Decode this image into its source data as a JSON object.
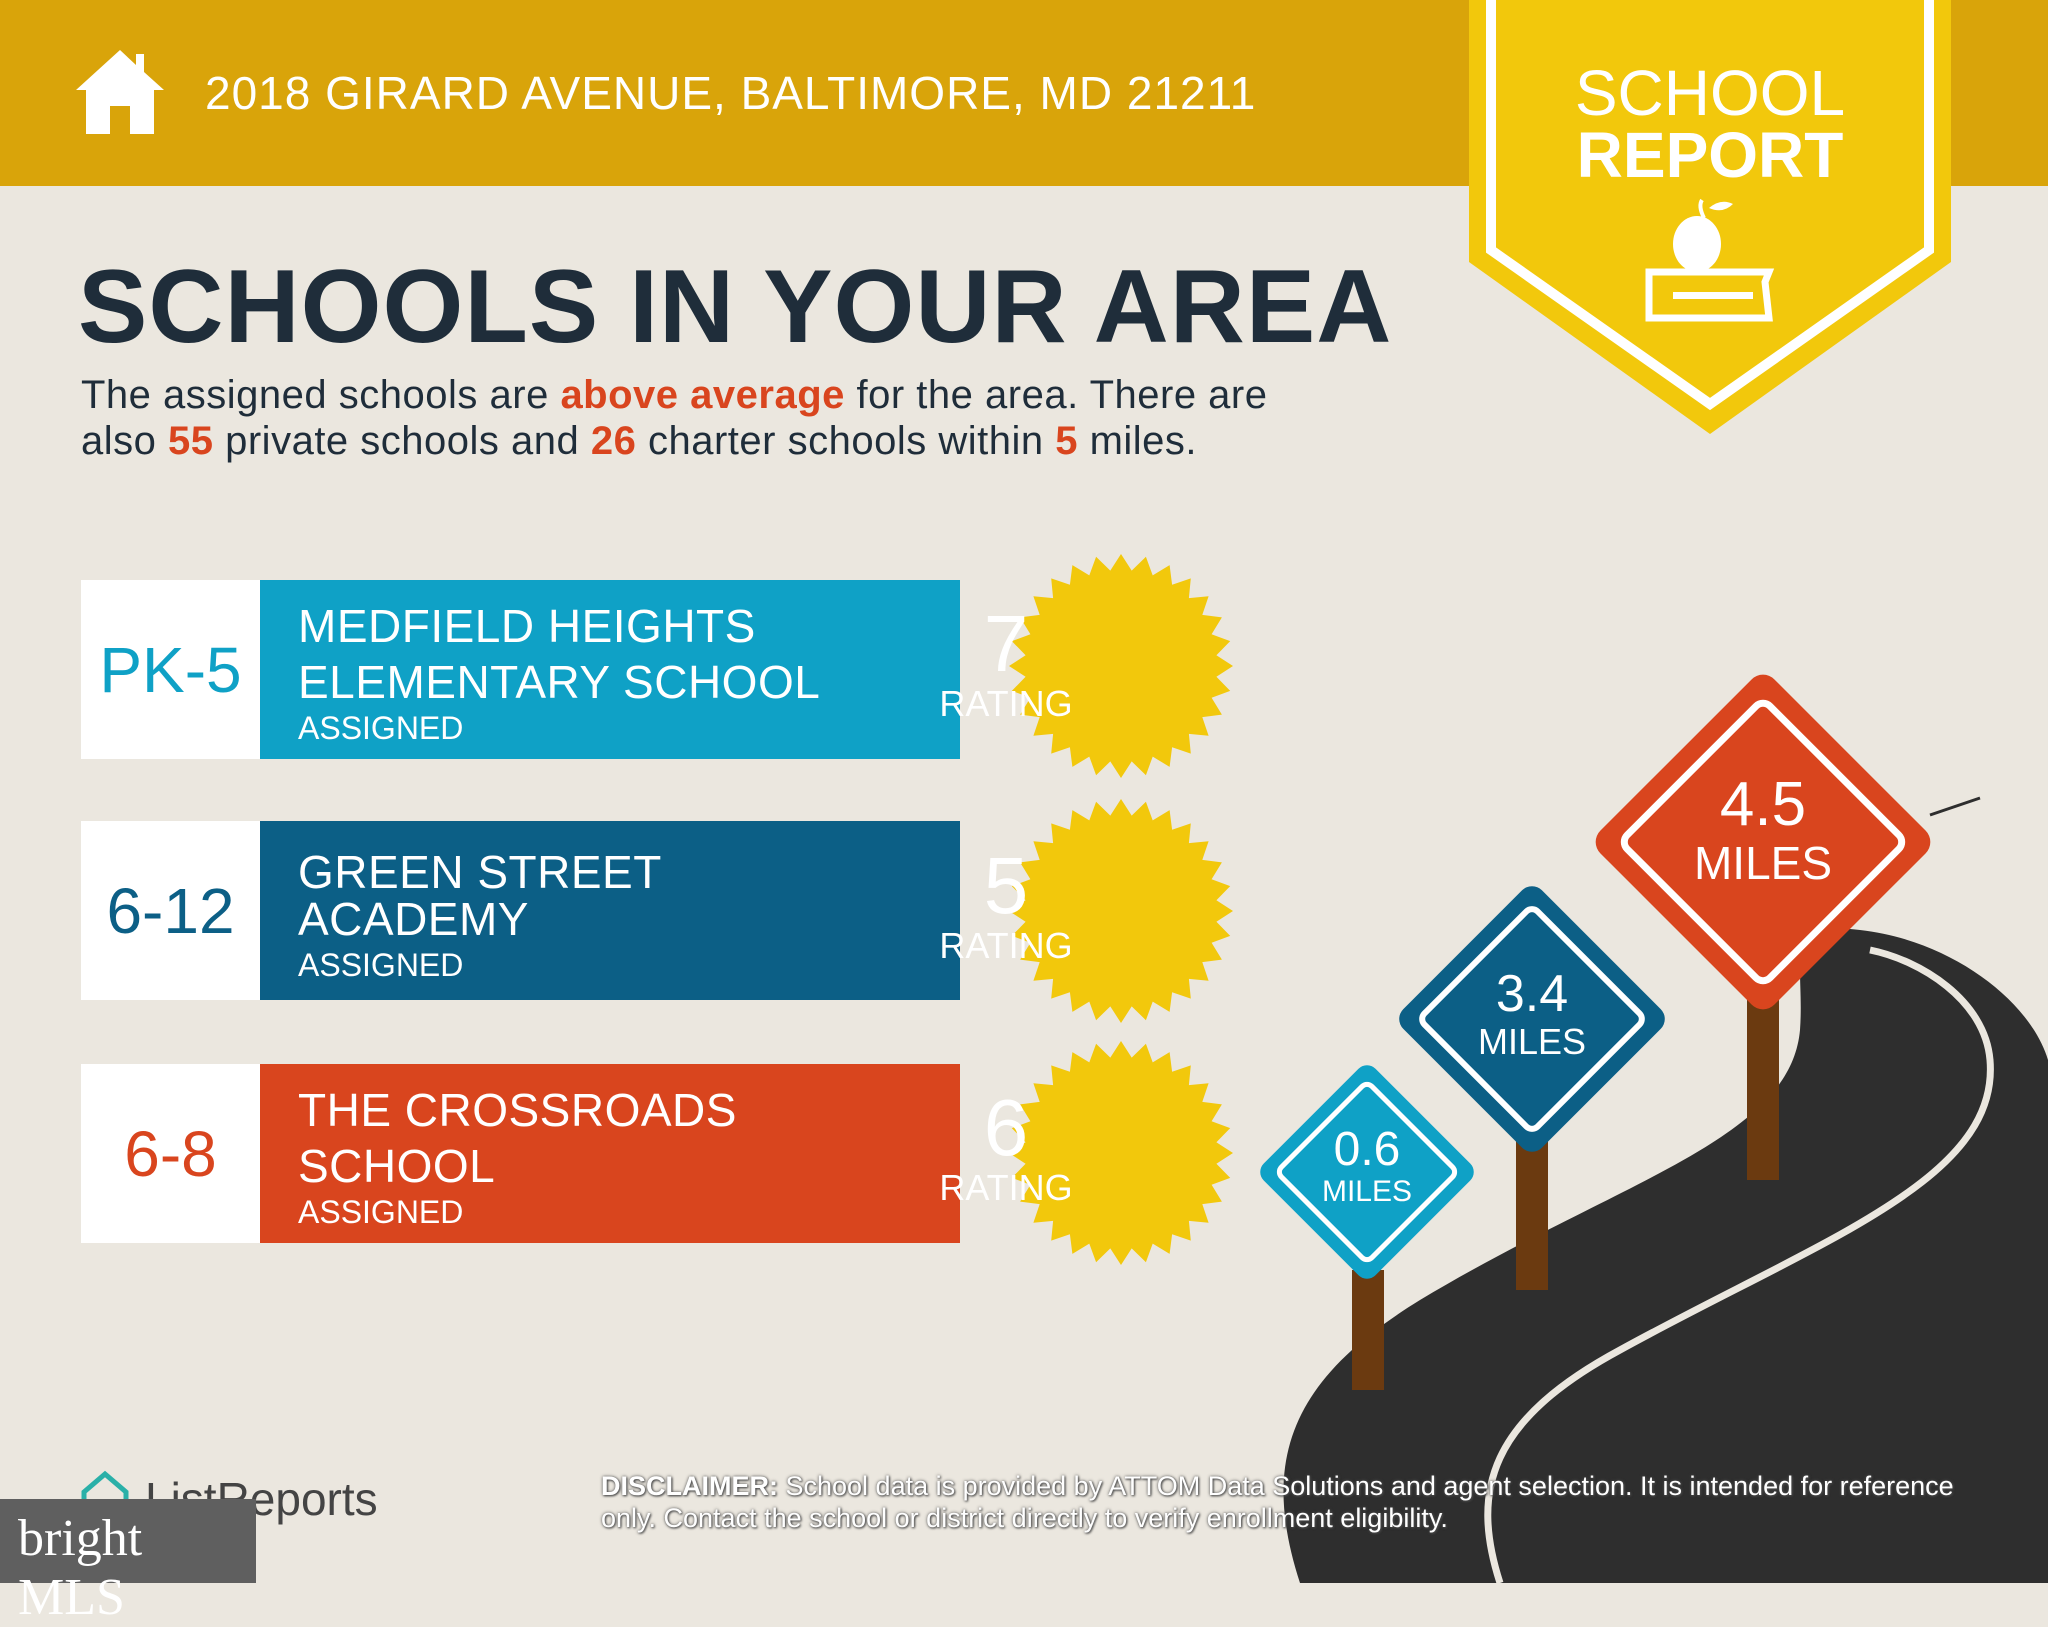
{
  "header": {
    "address": "2018 GIRARD AVENUE, BALTIMORE, MD 21211",
    "badge_line1": "SCHOOL",
    "badge_line2": "REPORT"
  },
  "main": {
    "title": "SCHOOLS IN YOUR AREA",
    "intro": {
      "t1": "The assigned schools are ",
      "h1": "above average",
      "t2": " for the area. There are",
      "t3": "also ",
      "private_count": "55",
      "t4": " private schools and ",
      "charter_count": "26",
      "t5": " charter schools within ",
      "miles": "5",
      "t6": " miles."
    },
    "schools": [
      {
        "grades": "PK-5",
        "name_line1": "MEDFIELD HEIGHTS",
        "name_line2": "ELEMENTARY SCHOOL",
        "status": "ASSIGNED",
        "rating": "7",
        "rating_label": "RATING",
        "color": "#0fa1c6",
        "distance": "0.6",
        "distance_unit": "MILES"
      },
      {
        "grades": "6-12",
        "name_line1": "GREEN STREET",
        "name_line2": "ACADEMY",
        "status": "ASSIGNED",
        "rating": "5",
        "rating_label": "RATING",
        "color": "#0c5f86",
        "distance": "3.4",
        "distance_unit": "MILES"
      },
      {
        "grades": "6-8",
        "name_line1": "THE CROSSROADS",
        "name_line2": "SCHOOL",
        "status": "ASSIGNED",
        "rating": "6",
        "rating_label": "RATING",
        "color": "#d9451e",
        "distance": "4.5",
        "distance_unit": "MILES"
      }
    ]
  },
  "footer": {
    "disclaimer_label": "DISCLAIMER:",
    "disclaimer_text": " School data is provided by ATTOM Data Solutions and agent selection. It is intended for reference only. Contact the school or district directly to verify enrollment eligibility.",
    "logo": "ListReports",
    "watermark": "bright MLS"
  },
  "colors": {
    "header": "#d9a40a",
    "badge": "#f2c80c",
    "star": "#f2c80c",
    "title": "#1f2d3a"
  }
}
